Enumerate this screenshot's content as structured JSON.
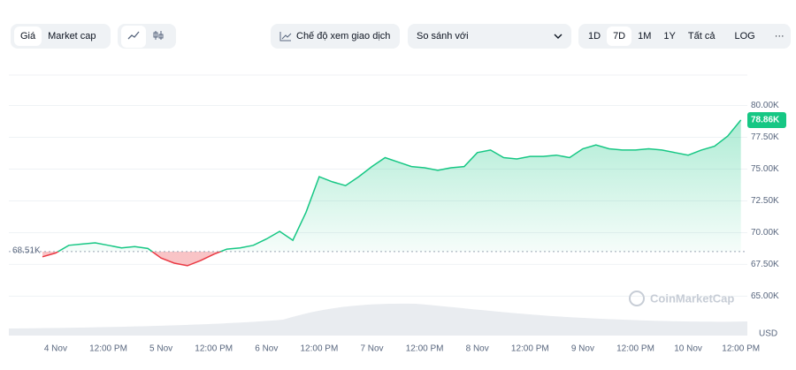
{
  "toolbar": {
    "price": "Giá",
    "market_cap": "Market cap",
    "trading_view": "Chế độ xem giao dịch",
    "compare": "So sánh với",
    "ranges": [
      "1D",
      "7D",
      "1M",
      "1Y",
      "Tất cả"
    ],
    "log": "LOG",
    "more": "···"
  },
  "chart_data": {
    "type": "line",
    "currency": "USD",
    "watermark": "CoinMarketCap",
    "categories": [
      null,
      "4 Nov",
      null,
      null,
      null,
      "12:00 PM",
      null,
      null,
      null,
      "5 Nov",
      null,
      null,
      null,
      "12:00 PM",
      null,
      null,
      null,
      "6 Nov",
      null,
      null,
      null,
      "12:00 PM",
      null,
      null,
      null,
      "7 Nov",
      null,
      null,
      null,
      "12:00 PM",
      null,
      null,
      null,
      "8 Nov",
      null,
      null,
      null,
      "12:00 PM",
      null,
      null,
      null,
      "9 Nov",
      null,
      null,
      null,
      "12:00 PM",
      null,
      null,
      null,
      "10 Nov",
      null,
      null,
      null,
      "12:00 PM"
    ],
    "values": [
      68.1,
      68.4,
      69.0,
      69.1,
      69.2,
      69.0,
      68.8,
      68.9,
      68.75,
      68.0,
      67.6,
      67.4,
      67.8,
      68.3,
      68.7,
      68.8,
      69.0,
      69.5,
      70.1,
      69.4,
      71.6,
      74.4,
      74.0,
      73.7,
      74.4,
      75.2,
      75.9,
      75.55,
      75.2,
      75.1,
      74.9,
      75.1,
      75.2,
      76.3,
      76.5,
      75.9,
      75.8,
      76.0,
      76.0,
      76.1,
      75.9,
      76.6,
      76.9,
      76.6,
      76.5,
      76.5,
      76.6,
      76.5,
      76.3,
      76.1,
      76.5,
      76.8,
      77.6,
      78.86
    ],
    "baseline": {
      "value": 68.51,
      "label": "68.51K"
    },
    "last_price": {
      "value": 78.86,
      "label": "78.86K"
    },
    "up_color": "#16c784",
    "down_color": "#ea3943",
    "ylim": [
      61.9,
      82.4
    ],
    "yticks": [
      {
        "value": 65,
        "label": "65.00K"
      },
      {
        "value": 67.5,
        "label": "67.50K"
      },
      {
        "value": 70,
        "label": "70.00K"
      },
      {
        "value": 72.5,
        "label": "72.50K"
      },
      {
        "value": 75,
        "label": "75.00K"
      },
      {
        "value": 77.5,
        "label": "77.50K"
      },
      {
        "value": 80,
        "label": "80.00K"
      }
    ],
    "grid": true
  }
}
